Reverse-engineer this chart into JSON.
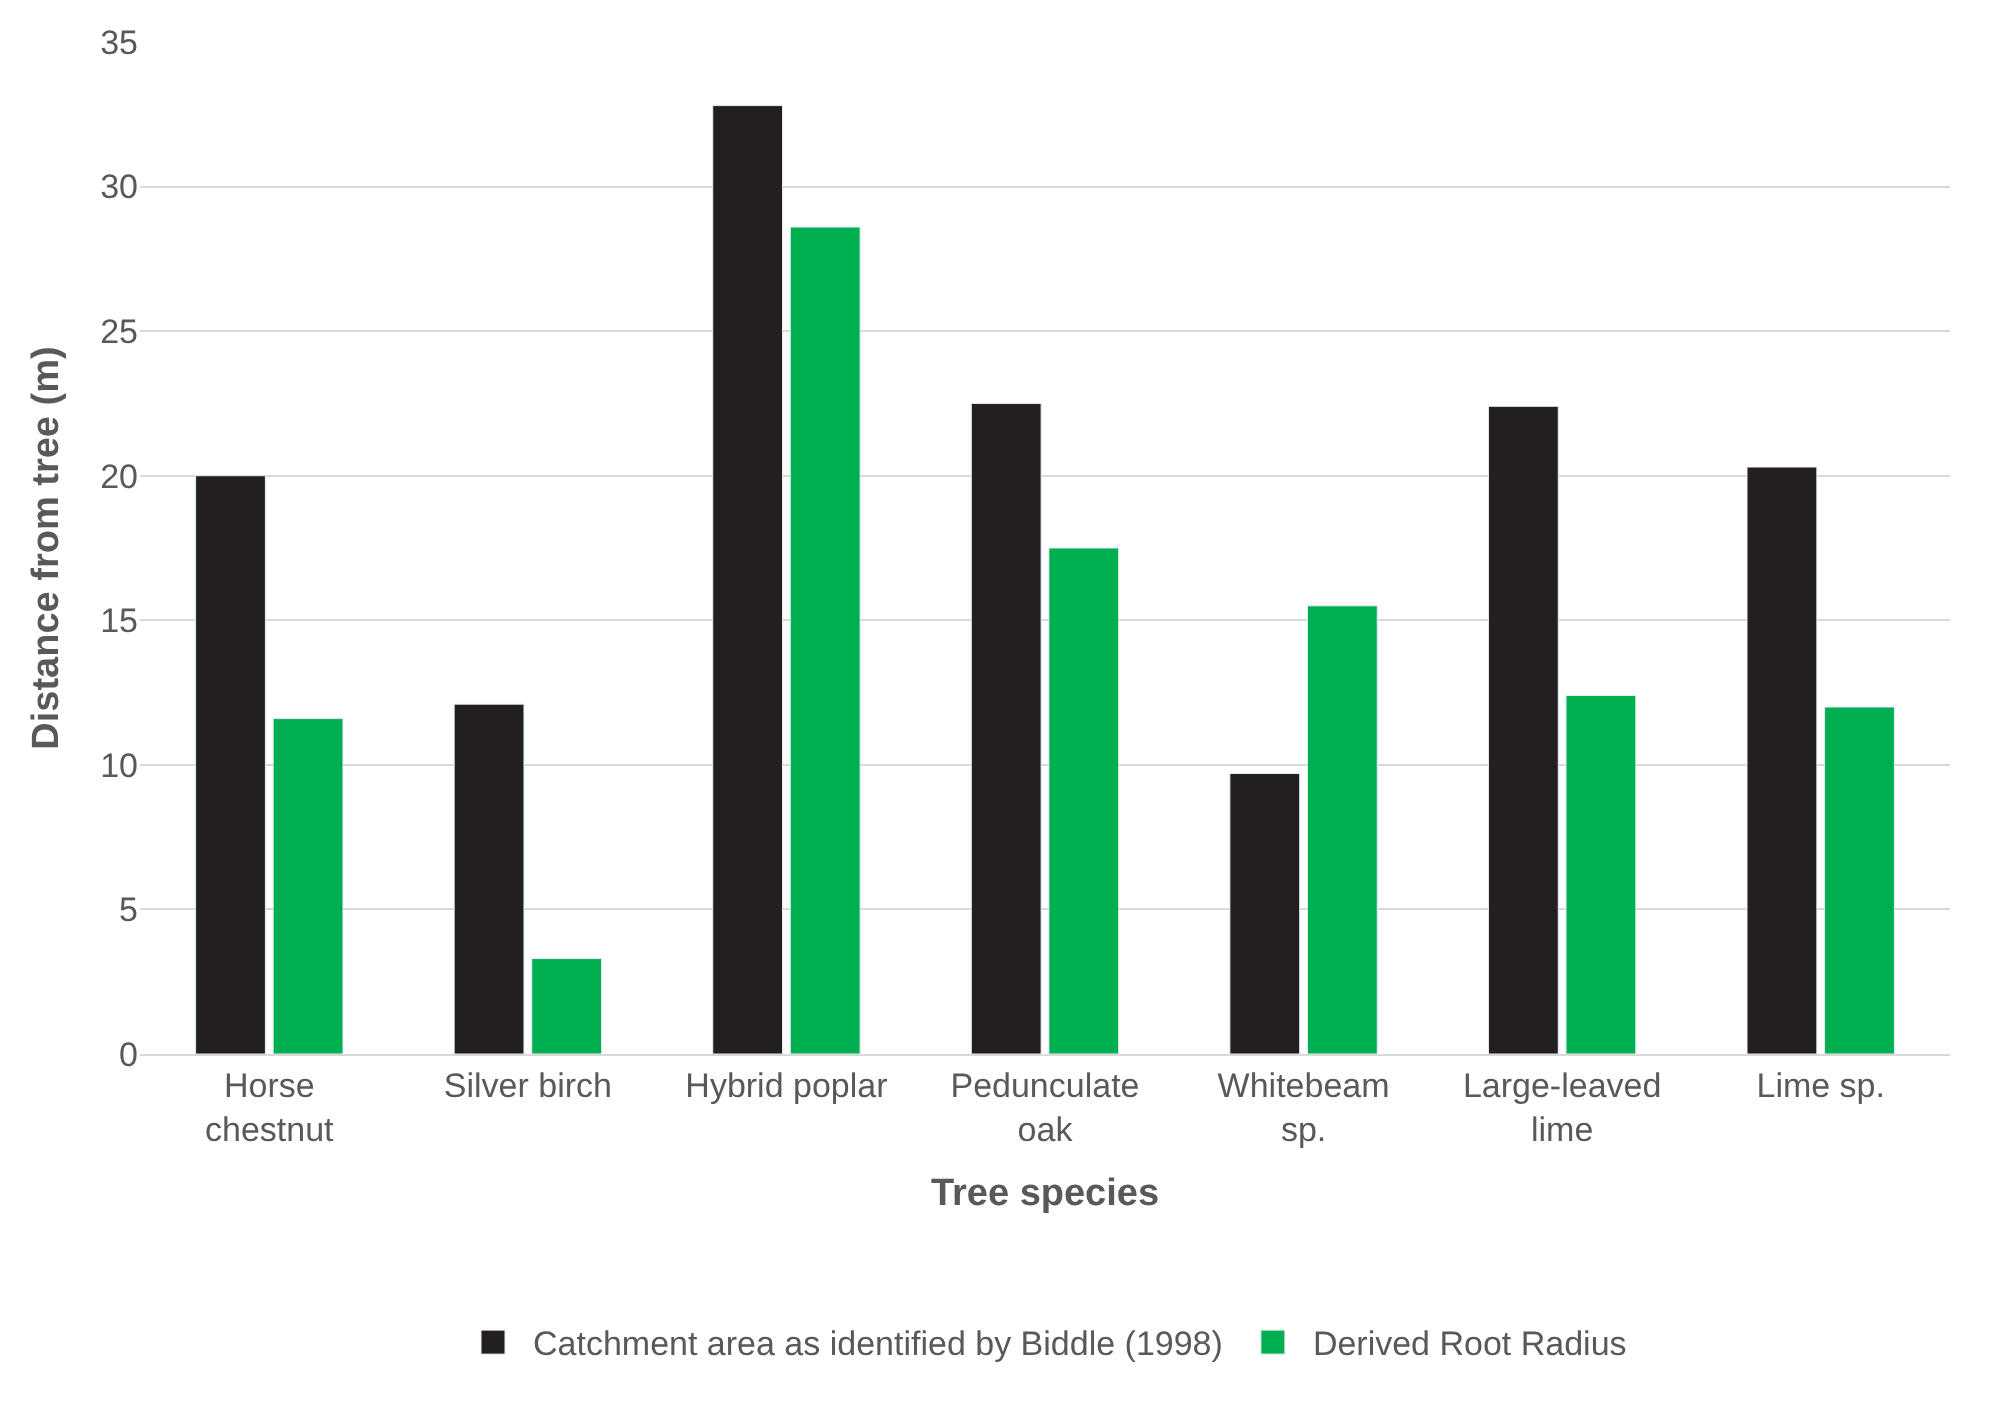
{
  "chart_data": {
    "type": "bar",
    "xlabel": "Tree species",
    "ylabel": "Distance from tree (m)",
    "categories": [
      "Horse\nchestnut",
      "Silver birch",
      "Hybrid poplar",
      "Pedunculate\noak",
      "Whitebeam\nsp.",
      "Large-leaved\nlime",
      "Lime sp."
    ],
    "series": [
      {
        "name": "Catchment area as identified by Biddle (1998)",
        "color": "#231f20",
        "values": [
          20.0,
          12.1,
          32.8,
          22.5,
          9.7,
          22.4,
          20.3
        ]
      },
      {
        "name": "Derived Root Radius",
        "color": "#00b050",
        "values": [
          11.6,
          3.3,
          28.6,
          17.5,
          15.5,
          12.4,
          12.0
        ]
      }
    ],
    "ylim": [
      0,
      35
    ],
    "yticks": [
      0,
      5,
      10,
      15,
      20,
      25,
      30,
      35
    ],
    "grid": "y",
    "legend": "bottom"
  }
}
